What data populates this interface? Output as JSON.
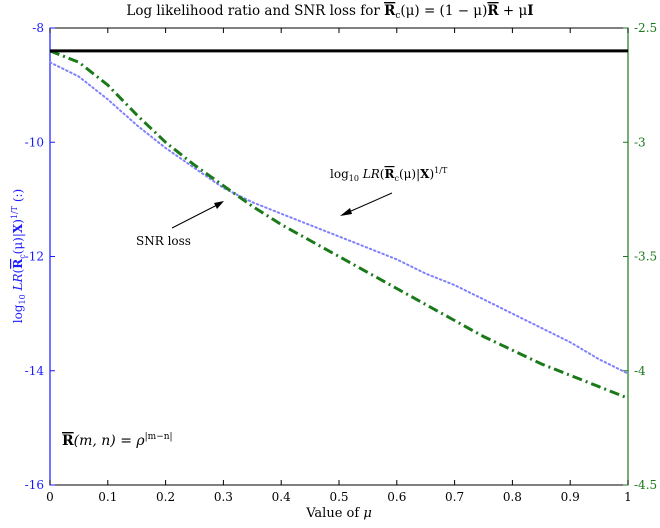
{
  "chart_data": {
    "type": "line",
    "title": "Log likelihood ratio and SNR loss for R̄c(μ) = (1 − μ)R̄ + μI",
    "xlabel": "Value of μ",
    "ylabel_left": "log10 LR(R̄c(μ)|X)^1/T (:)",
    "ylabel_right": "",
    "xlim": [
      0,
      1
    ],
    "ylim_left": [
      -16,
      -8
    ],
    "ylim_right": [
      -4.5,
      -2.5
    ],
    "x_ticks": [
      "0",
      "0.1",
      "0.2",
      "0.3",
      "0.4",
      "0.5",
      "0.6",
      "0.7",
      "0.8",
      "0.9",
      "1"
    ],
    "y_ticks_left": [
      "-8",
      "-10",
      "-12",
      "-14",
      "-16"
    ],
    "y_ticks_right": [
      "-2.5",
      "-3",
      "-3.5",
      "-4",
      "-4.5"
    ],
    "series": [
      {
        "name": "log10 LR(R̄c(μ)|X)^1/T",
        "axis": "left",
        "color": "#8080ff",
        "style": "dotted",
        "x": [
          0,
          0.05,
          0.1,
          0.15,
          0.2,
          0.25,
          0.3,
          0.35,
          0.4,
          0.45,
          0.5,
          0.55,
          0.6,
          0.65,
          0.7,
          0.75,
          0.8,
          0.85,
          0.9,
          0.95,
          1.0
        ],
        "y": [
          -8.6,
          -8.85,
          -9.25,
          -9.7,
          -10.1,
          -10.45,
          -10.8,
          -11.05,
          -11.25,
          -11.45,
          -11.65,
          -11.85,
          -12.05,
          -12.3,
          -12.5,
          -12.75,
          -13.0,
          -13.25,
          -13.5,
          -13.8,
          -14.05
        ]
      },
      {
        "name": "SNR loss",
        "axis": "right",
        "color": "#1a7a1a",
        "style": "dashdot",
        "x": [
          0,
          0.05,
          0.1,
          0.15,
          0.2,
          0.25,
          0.3,
          0.35,
          0.4,
          0.45,
          0.5,
          0.55,
          0.6,
          0.65,
          0.7,
          0.75,
          0.8,
          0.85,
          0.9,
          0.95,
          1.0
        ],
        "y": [
          -2.6,
          -2.65,
          -2.75,
          -2.88,
          -3.0,
          -3.1,
          -3.19,
          -3.28,
          -3.36,
          -3.43,
          -3.5,
          -3.57,
          -3.64,
          -3.71,
          -3.78,
          -3.85,
          -3.91,
          -3.97,
          -4.02,
          -4.07,
          -4.12
        ]
      },
      {
        "name": "",
        "axis": "right",
        "color": "#000000",
        "style": "solid",
        "x": [
          0,
          1
        ],
        "y": [
          -2.6,
          -2.6
        ]
      }
    ],
    "annotations": [
      {
        "label": "log10 LR(R̄c(μ)|X)^1/T",
        "arrow_to": [
          0.48,
          -11.45
        ]
      },
      {
        "label": "SNR loss",
        "arrow_to": [
          0.3,
          -3.2
        ]
      },
      {
        "label": "R̄(m,n) = ρ^|m−n|"
      }
    ],
    "left_axis_color": "#1a1aff",
    "right_axis_color": "#1a7a1a",
    "grid": false
  }
}
